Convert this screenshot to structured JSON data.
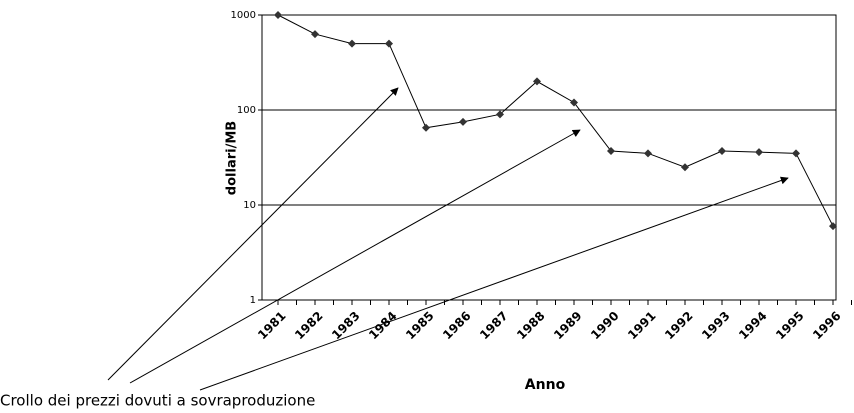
{
  "chart_data": {
    "type": "line",
    "x_label": "Anno",
    "y_label": "dollari/MB",
    "annotation": "Crollo dei prezzi dovuti a sovraproduzione",
    "categories": [
      "1981",
      "1982",
      "1983",
      "1984",
      "1985",
      "1986",
      "1987",
      "1988",
      "1989",
      "1990",
      "1991",
      "1992",
      "1993",
      "1994",
      "1995",
      "1996"
    ],
    "series": [
      {
        "name": "dollari/MB",
        "color": "#000000",
        "values": [
          1000,
          630,
          500,
          500,
          65,
          75,
          90,
          200,
          120,
          37,
          35,
          25,
          37,
          36,
          35,
          6
        ]
      }
    ],
    "ylim": [
      1,
      1000
    ],
    "yticks": [
      1,
      10,
      100,
      1000
    ],
    "log_y": true,
    "grid": true
  }
}
